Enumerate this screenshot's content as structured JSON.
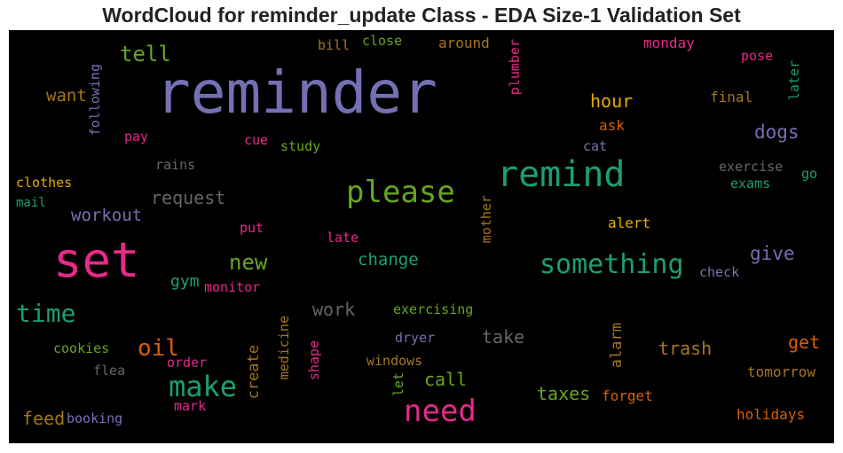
{
  "title": "WordCloud for reminder_update Class - EDA Size-1 Validation Set",
  "colors": {
    "purple": "#7570b3",
    "pink": "#e7298a",
    "teal": "#1b9e77",
    "green": "#66a61e",
    "orange": "#d95f02",
    "gold": "#e6ab02",
    "brown": "#a6761d",
    "gray": "#666666"
  },
  "words": [
    {
      "text": "reminder",
      "color": "purple",
      "vertical": false
    },
    {
      "text": "set",
      "color": "pink",
      "vertical": false
    },
    {
      "text": "remind",
      "color": "teal",
      "vertical": false
    },
    {
      "text": "please",
      "color": "green",
      "vertical": false
    },
    {
      "text": "something",
      "color": "teal",
      "vertical": false
    },
    {
      "text": "need",
      "color": "pink",
      "vertical": false
    },
    {
      "text": "make",
      "color": "teal",
      "vertical": false
    },
    {
      "text": "time",
      "color": "teal",
      "vertical": false
    },
    {
      "text": "new",
      "color": "green",
      "vertical": false
    },
    {
      "text": "oil",
      "color": "orange",
      "vertical": false
    },
    {
      "text": "tell",
      "color": "green",
      "vertical": false
    },
    {
      "text": "change",
      "color": "teal",
      "vertical": false
    },
    {
      "text": "give",
      "color": "purple",
      "vertical": false
    },
    {
      "text": "workout",
      "color": "purple",
      "vertical": false
    },
    {
      "text": "request",
      "color": "gray",
      "vertical": false
    },
    {
      "text": "dogs",
      "color": "purple",
      "vertical": false
    },
    {
      "text": "hour",
      "color": "gold",
      "vertical": false
    },
    {
      "text": "work",
      "color": "gray",
      "vertical": false
    },
    {
      "text": "take",
      "color": "gray",
      "vertical": false
    },
    {
      "text": "trash",
      "color": "brown",
      "vertical": false
    },
    {
      "text": "get",
      "color": "orange",
      "vertical": false
    },
    {
      "text": "call",
      "color": "green",
      "vertical": false
    },
    {
      "text": "taxes",
      "color": "green",
      "vertical": false
    },
    {
      "text": "want",
      "color": "brown",
      "vertical": false
    },
    {
      "text": "feed",
      "color": "brown",
      "vertical": false
    },
    {
      "text": "gym",
      "color": "teal",
      "vertical": false
    },
    {
      "text": "bill",
      "color": "brown",
      "vertical": false
    },
    {
      "text": "close",
      "color": "green",
      "vertical": false
    },
    {
      "text": "around",
      "color": "brown",
      "vertical": false
    },
    {
      "text": "monday",
      "color": "pink",
      "vertical": false
    },
    {
      "text": "pose",
      "color": "pink",
      "vertical": false
    },
    {
      "text": "final",
      "color": "brown",
      "vertical": false
    },
    {
      "text": "ask",
      "color": "orange",
      "vertical": false
    },
    {
      "text": "cat",
      "color": "purple",
      "vertical": false
    },
    {
      "text": "pay",
      "color": "pink",
      "vertical": false
    },
    {
      "text": "cue",
      "color": "pink",
      "vertical": false
    },
    {
      "text": "study",
      "color": "green",
      "vertical": false
    },
    {
      "text": "rains",
      "color": "gray",
      "vertical": false
    },
    {
      "text": "clothes",
      "color": "gold",
      "vertical": false
    },
    {
      "text": "mail",
      "color": "teal",
      "vertical": false
    },
    {
      "text": "exercise",
      "color": "gray",
      "vertical": false
    },
    {
      "text": "exams",
      "color": "teal",
      "vertical": false
    },
    {
      "text": "go",
      "color": "teal",
      "vertical": false
    },
    {
      "text": "alert",
      "color": "gold",
      "vertical": false
    },
    {
      "text": "put",
      "color": "pink",
      "vertical": false
    },
    {
      "text": "late",
      "color": "pink",
      "vertical": false
    },
    {
      "text": "check",
      "color": "purple",
      "vertical": false
    },
    {
      "text": "monitor",
      "color": "pink",
      "vertical": false
    },
    {
      "text": "exercising",
      "color": "green",
      "vertical": false
    },
    {
      "text": "dryer",
      "color": "purple",
      "vertical": false
    },
    {
      "text": "windows",
      "color": "brown",
      "vertical": false
    },
    {
      "text": "cookies",
      "color": "green",
      "vertical": false
    },
    {
      "text": "order",
      "color": "pink",
      "vertical": false
    },
    {
      "text": "flea",
      "color": "gray",
      "vertical": false
    },
    {
      "text": "tomorrow",
      "color": "brown",
      "vertical": false
    },
    {
      "text": "forget",
      "color": "orange",
      "vertical": false
    },
    {
      "text": "holidays",
      "color": "orange",
      "vertical": false
    },
    {
      "text": "booking",
      "color": "purple",
      "vertical": false
    },
    {
      "text": "mark",
      "color": "pink",
      "vertical": false
    },
    {
      "text": "following",
      "color": "purple",
      "vertical": true
    },
    {
      "text": "plumber",
      "color": "pink",
      "vertical": true
    },
    {
      "text": "later",
      "color": "teal",
      "vertical": true
    },
    {
      "text": "mother",
      "color": "brown",
      "vertical": true
    },
    {
      "text": "alarm",
      "color": "brown",
      "vertical": true
    },
    {
      "text": "create",
      "color": "brown",
      "vertical": true
    },
    {
      "text": "medicine",
      "color": "brown",
      "vertical": true
    },
    {
      "text": "shape",
      "color": "pink",
      "vertical": true
    },
    {
      "text": "let",
      "color": "green",
      "vertical": true
    }
  ]
}
